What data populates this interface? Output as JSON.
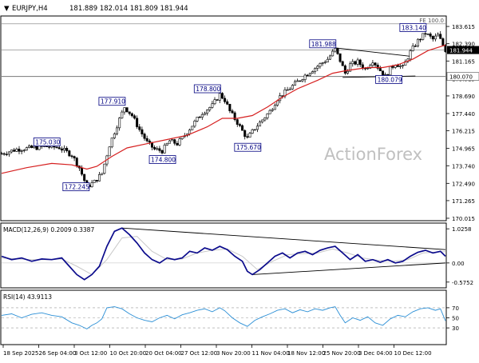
{
  "header": {
    "symbol_label": "EURJPY,H4",
    "ohlc_text": "181.889 182.014 181.809 181.944"
  },
  "watermark": "ActionForex",
  "colors": {
    "background": "#ffffff",
    "frame": "#000000",
    "candle": "#000000",
    "ema": "#d62020",
    "macd_line": "#0a0a8c",
    "macd_signal": "#c8c8c8",
    "rsi_line": "#2b8fd6",
    "level_line": "#7a7a7a",
    "label_border": "#000080",
    "label_text": "#000080",
    "label_fill": "#ffffff",
    "price_badge": "#000000",
    "price_badge_text": "#ffffff",
    "watermark": "#c0c0c0"
  },
  "chart_data": [
    {
      "type": "candlestick",
      "panel": "price",
      "symbol": "EURJPY",
      "timeframe": "H4",
      "ylim": [
        169.9,
        184.3
      ],
      "y_ticks": [
        "183.615",
        "182.390",
        "181.165",
        "179.915",
        "178.690",
        "177.440",
        "176.215",
        "174.965",
        "173.740",
        "172.490",
        "171.265",
        "170.015"
      ],
      "x_tick_labels": [
        "18 Sep 2025",
        "26 Sep 04:00",
        "3 Oct 12:00",
        "10 Oct 20:00",
        "20 Oct 04:00",
        "27 Oct 12:00",
        "3 Nov 20:00",
        "11 Nov 04:00",
        "18 Nov 12:00",
        "25 Nov 20:00",
        "3 Dec 04:00",
        "10 Dec 12:00"
      ],
      "close_price_path": [
        [
          0,
          174.6
        ],
        [
          6,
          174.9
        ],
        [
          12,
          175.0
        ],
        [
          18,
          175.1
        ],
        [
          23,
          175.03
        ],
        [
          28,
          174.5
        ],
        [
          31,
          173.6
        ],
        [
          34,
          172.245
        ],
        [
          37,
          172.6
        ],
        [
          40,
          173.2
        ],
        [
          43,
          175.2
        ],
        [
          46,
          176.6
        ],
        [
          49,
          177.91
        ],
        [
          52,
          177.3
        ],
        [
          55,
          176.3
        ],
        [
          58,
          175.4
        ],
        [
          61,
          174.9
        ],
        [
          64,
          174.8
        ],
        [
          67,
          175.5
        ],
        [
          70,
          175.3
        ],
        [
          73,
          175.9
        ],
        [
          76,
          176.6
        ],
        [
          80,
          177.5
        ],
        [
          84,
          178.0
        ],
        [
          87,
          178.8
        ],
        [
          89,
          178.4
        ],
        [
          91,
          177.6
        ],
        [
          94,
          176.8
        ],
        [
          96,
          176.2
        ],
        [
          98,
          175.67
        ],
        [
          101,
          176.4
        ],
        [
          104,
          177.0
        ],
        [
          107,
          177.6
        ],
        [
          110,
          178.5
        ],
        [
          114,
          179.1
        ],
        [
          118,
          179.7
        ],
        [
          122,
          180.3
        ],
        [
          126,
          180.8
        ],
        [
          130,
          181.3
        ],
        [
          133,
          181.988
        ],
        [
          135,
          181.2
        ],
        [
          137,
          180.3
        ],
        [
          139,
          180.9
        ],
        [
          142,
          181.1
        ],
        [
          145,
          180.6
        ],
        [
          148,
          181.2
        ],
        [
          151,
          180.5
        ],
        [
          153,
          180.079
        ],
        [
          155,
          180.6
        ],
        [
          157,
          181.0
        ],
        [
          160,
          180.7
        ],
        [
          163,
          181.8
        ],
        [
          166,
          182.6
        ],
        [
          169,
          183.14
        ],
        [
          172,
          182.7
        ],
        [
          174,
          183.0
        ],
        [
          176,
          182.3
        ],
        [
          177,
          181.944
        ]
      ],
      "ema_path": [
        [
          0,
          173.2
        ],
        [
          10,
          173.6
        ],
        [
          20,
          173.9
        ],
        [
          28,
          173.8
        ],
        [
          34,
          173.5
        ],
        [
          38,
          173.7
        ],
        [
          44,
          174.4
        ],
        [
          50,
          175.0
        ],
        [
          58,
          175.3
        ],
        [
          66,
          175.6
        ],
        [
          74,
          175.9
        ],
        [
          82,
          176.5
        ],
        [
          88,
          177.1
        ],
        [
          94,
          177.1
        ],
        [
          100,
          177.3
        ],
        [
          106,
          177.9
        ],
        [
          112,
          178.6
        ],
        [
          118,
          179.2
        ],
        [
          126,
          179.8
        ],
        [
          132,
          180.3
        ],
        [
          138,
          180.5
        ],
        [
          146,
          180.7
        ],
        [
          152,
          180.7
        ],
        [
          158,
          180.9
        ],
        [
          164,
          181.3
        ],
        [
          170,
          181.9
        ],
        [
          177,
          182.3
        ]
      ],
      "level_lines": [
        {
          "label": "FE 100.0",
          "value": 183.8
        },
        {
          "label": "",
          "value": 181.944
        },
        {
          "label": "180.070",
          "value": 180.07
        }
      ],
      "trendlines": [
        {
          "from": [
            133,
            182.1
          ],
          "to": [
            163,
            181.5
          ]
        },
        {
          "from": [
            136,
            180.0
          ],
          "to": [
            165,
            180.1
          ]
        }
      ],
      "annotations": [
        {
          "text": "181.988",
          "x": 133,
          "y": 181.988
        },
        {
          "text": "183.140",
          "x": 169,
          "y": 183.14
        },
        {
          "text": "180.079",
          "x": 153,
          "y": 180.079
        },
        {
          "text": "177.910",
          "x": 49,
          "y": 177.91
        },
        {
          "text": "178.800",
          "x": 87,
          "y": 178.8
        },
        {
          "text": "175.030",
          "x": 23,
          "y": 175.03
        },
        {
          "text": "174.800",
          "x": 64,
          "y": 174.8
        },
        {
          "text": "175.670",
          "x": 98,
          "y": 175.67
        },
        {
          "text": "172.245",
          "x": 34,
          "y": 172.245
        }
      ],
      "price_badge": {
        "value": "181.944"
      },
      "level_badge": {
        "value": "180.070"
      }
    },
    {
      "type": "line",
      "panel": "macd",
      "title": "MACD(12,26,9) 0.2009 0.3387",
      "ylim": [
        -0.7,
        1.15
      ],
      "y_ticks": [
        "1.0258",
        "0.00",
        "-0.5752"
      ],
      "series": [
        {
          "name": "MACD",
          "values": [
            [
              0,
              0.2
            ],
            [
              4,
              0.1
            ],
            [
              8,
              0.15
            ],
            [
              12,
              0.05
            ],
            [
              16,
              0.12
            ],
            [
              20,
              0.1
            ],
            [
              24,
              0.15
            ],
            [
              27,
              -0.1
            ],
            [
              30,
              -0.35
            ],
            [
              33,
              -0.5
            ],
            [
              36,
              -0.35
            ],
            [
              39,
              -0.1
            ],
            [
              42,
              0.5
            ],
            [
              45,
              0.95
            ],
            [
              48,
              1.05
            ],
            [
              51,
              0.85
            ],
            [
              54,
              0.6
            ],
            [
              57,
              0.3
            ],
            [
              60,
              0.1
            ],
            [
              63,
              0.0
            ],
            [
              66,
              0.15
            ],
            [
              69,
              0.1
            ],
            [
              72,
              0.15
            ],
            [
              75,
              0.35
            ],
            [
              78,
              0.3
            ],
            [
              81,
              0.45
            ],
            [
              84,
              0.38
            ],
            [
              87,
              0.5
            ],
            [
              90,
              0.4
            ],
            [
              93,
              0.2
            ],
            [
              96,
              0.05
            ],
            [
              98,
              -0.25
            ],
            [
              100,
              -0.35
            ],
            [
              103,
              -0.2
            ],
            [
              106,
              0.0
            ],
            [
              109,
              0.2
            ],
            [
              112,
              0.3
            ],
            [
              115,
              0.15
            ],
            [
              118,
              0.3
            ],
            [
              121,
              0.35
            ],
            [
              124,
              0.25
            ],
            [
              127,
              0.38
            ],
            [
              130,
              0.45
            ],
            [
              133,
              0.5
            ],
            [
              136,
              0.3
            ],
            [
              139,
              0.1
            ],
            [
              142,
              0.25
            ],
            [
              145,
              0.05
            ],
            [
              148,
              0.1
            ],
            [
              151,
              0.02
            ],
            [
              154,
              0.1
            ],
            [
              157,
              0.0
            ],
            [
              160,
              0.05
            ],
            [
              163,
              0.2
            ],
            [
              166,
              0.32
            ],
            [
              169,
              0.38
            ],
            [
              172,
              0.3
            ],
            [
              175,
              0.35
            ],
            [
              177,
              0.2
            ]
          ]
        },
        {
          "name": "Signal",
          "values": [
            [
              0,
              0.15
            ],
            [
              6,
              0.12
            ],
            [
              12,
              0.1
            ],
            [
              18,
              0.1
            ],
            [
              24,
              0.12
            ],
            [
              30,
              -0.1
            ],
            [
              36,
              -0.35
            ],
            [
              42,
              0.1
            ],
            [
              48,
              0.75
            ],
            [
              54,
              0.8
            ],
            [
              60,
              0.35
            ],
            [
              66,
              0.1
            ],
            [
              72,
              0.12
            ],
            [
              78,
              0.3
            ],
            [
              84,
              0.38
            ],
            [
              90,
              0.42
            ],
            [
              96,
              0.2
            ],
            [
              102,
              -0.2
            ],
            [
              108,
              0.05
            ],
            [
              114,
              0.25
            ],
            [
              120,
              0.28
            ],
            [
              126,
              0.3
            ],
            [
              132,
              0.42
            ],
            [
              138,
              0.3
            ],
            [
              144,
              0.15
            ],
            [
              150,
              0.08
            ],
            [
              156,
              0.05
            ],
            [
              162,
              0.1
            ],
            [
              168,
              0.3
            ],
            [
              174,
              0.33
            ],
            [
              177,
              0.34
            ]
          ]
        }
      ],
      "trendlines": [
        {
          "from": [
            48,
            1.05
          ],
          "to": [
            177,
            0.4
          ]
        },
        {
          "from": [
            100,
            -0.35
          ],
          "to": [
            177,
            0.0
          ]
        }
      ]
    },
    {
      "type": "line",
      "panel": "rsi",
      "title": "RSI(14) 43.9113",
      "ylim": [
        0,
        100
      ],
      "y_ticks": [
        "70",
        "50",
        "30"
      ],
      "series": [
        {
          "name": "RSI",
          "values": [
            [
              0,
              55
            ],
            [
              4,
              58
            ],
            [
              8,
              50
            ],
            [
              12,
              57
            ],
            [
              16,
              60
            ],
            [
              20,
              55
            ],
            [
              24,
              52
            ],
            [
              28,
              40
            ],
            [
              31,
              35
            ],
            [
              34,
              28
            ],
            [
              36,
              35
            ],
            [
              38,
              40
            ],
            [
              40,
              48
            ],
            [
              42,
              70
            ],
            [
              45,
              72
            ],
            [
              48,
              68
            ],
            [
              51,
              58
            ],
            [
              54,
              50
            ],
            [
              57,
              45
            ],
            [
              60,
              42
            ],
            [
              63,
              50
            ],
            [
              66,
              55
            ],
            [
              69,
              48
            ],
            [
              72,
              56
            ],
            [
              75,
              60
            ],
            [
              78,
              65
            ],
            [
              81,
              68
            ],
            [
              84,
              62
            ],
            [
              87,
              70
            ],
            [
              89,
              64
            ],
            [
              92,
              50
            ],
            [
              95,
              40
            ],
            [
              98,
              33
            ],
            [
              101,
              45
            ],
            [
              104,
              52
            ],
            [
              107,
              58
            ],
            [
              110,
              65
            ],
            [
              113,
              68
            ],
            [
              116,
              60
            ],
            [
              119,
              66
            ],
            [
              122,
              62
            ],
            [
              125,
              68
            ],
            [
              128,
              65
            ],
            [
              131,
              70
            ],
            [
              133,
              72
            ],
            [
              135,
              55
            ],
            [
              137,
              40
            ],
            [
              140,
              50
            ],
            [
              143,
              45
            ],
            [
              146,
              52
            ],
            [
              149,
              40
            ],
            [
              152,
              35
            ],
            [
              155,
              48
            ],
            [
              158,
              55
            ],
            [
              161,
              52
            ],
            [
              164,
              62
            ],
            [
              167,
              68
            ],
            [
              170,
              70
            ],
            [
              173,
              65
            ],
            [
              175,
              68
            ],
            [
              177,
              44
            ]
          ]
        }
      ],
      "levels": [
        70,
        50,
        30
      ]
    }
  ]
}
